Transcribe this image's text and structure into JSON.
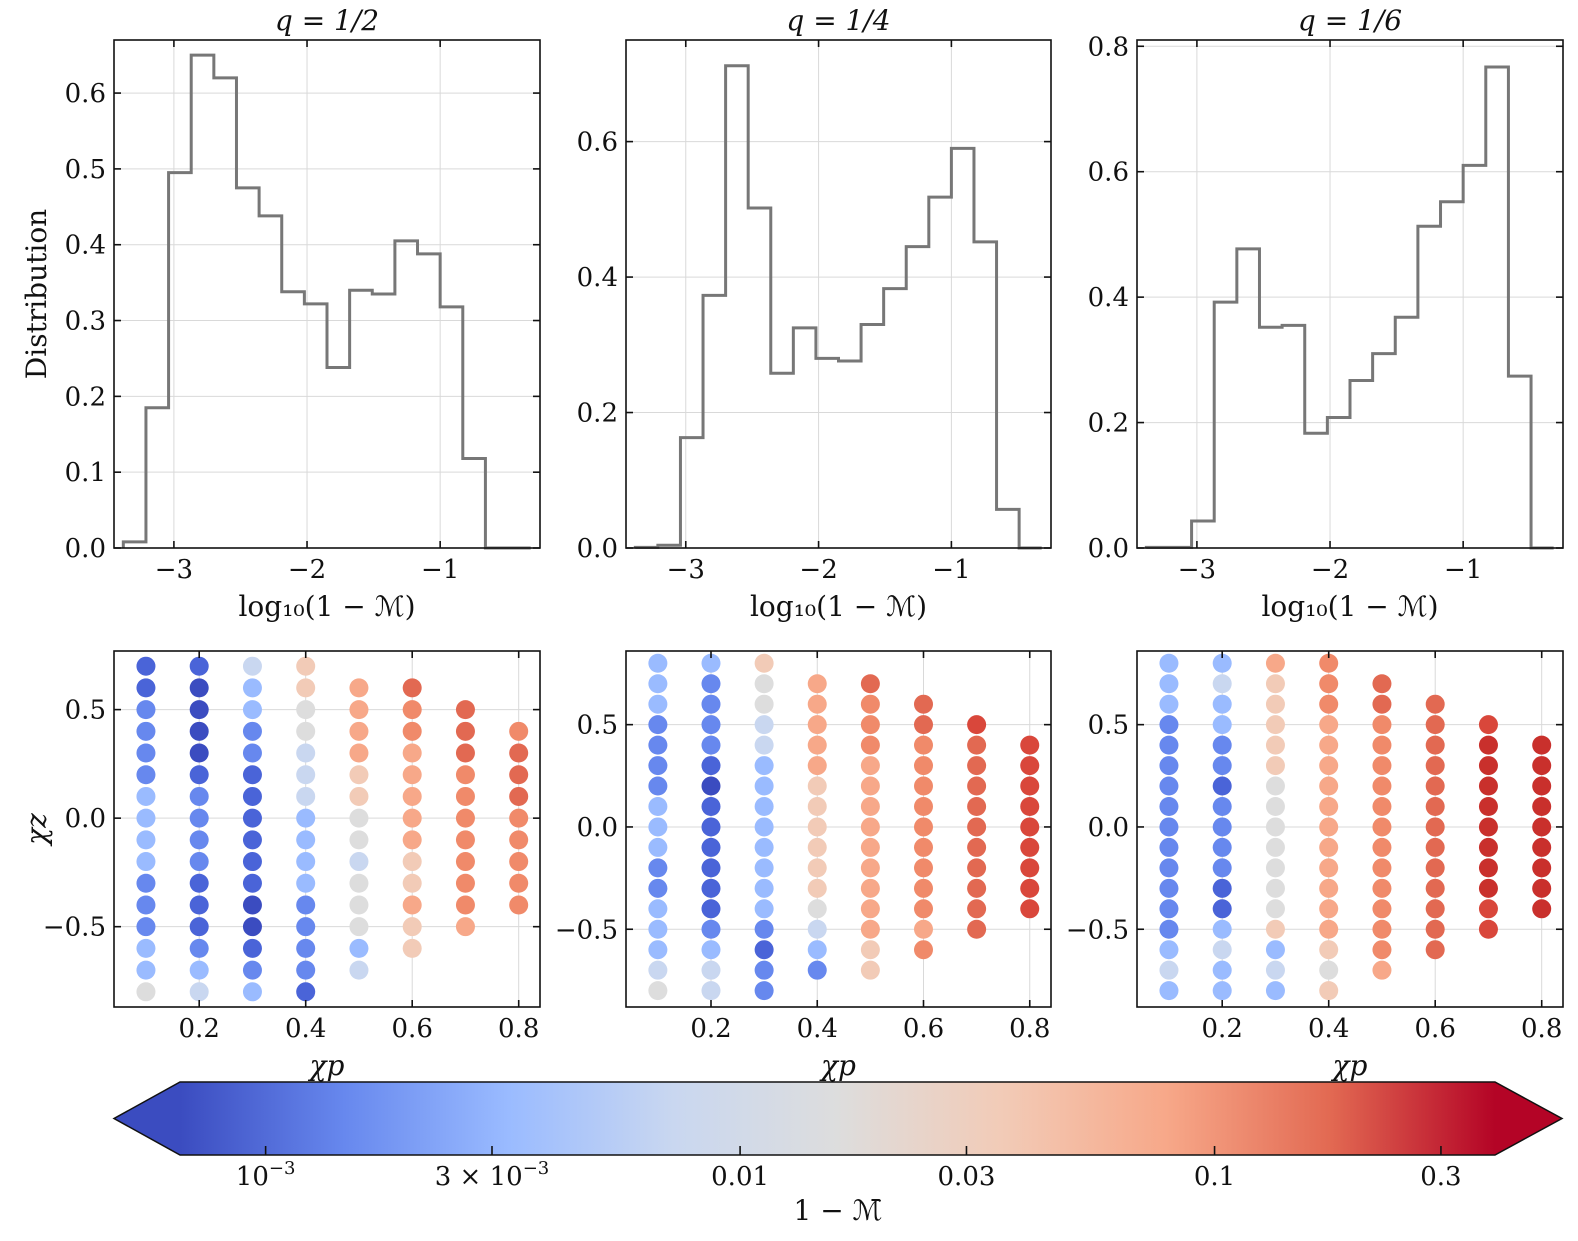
{
  "colors": {
    "histogram": "#777777",
    "grid": "#d9d9d9",
    "cmap": [
      "#3b4cc0",
      "#6788ee",
      "#9abbff",
      "#c9d7f0",
      "#dddddd",
      "#f2cbb7",
      "#f7a889",
      "#e26952",
      "#b40426"
    ]
  },
  "chart_data": [
    {
      "type": "histogram",
      "title": "q = 1/2",
      "xlabel": "log₁₀(1 − ℳ)",
      "ylabel": "Distribution",
      "xlim": [
        -3.45,
        -0.25
      ],
      "ylim": [
        0,
        0.67
      ],
      "xticks": [
        -3,
        -2,
        -1
      ],
      "xtick_labels": [
        "−3",
        "−2",
        "−1"
      ],
      "yticks": [
        0,
        0.1,
        0.2,
        0.3,
        0.4,
        0.5,
        0.6
      ],
      "ytick_labels": [
        "0.0",
        "0.1",
        "0.2",
        "0.3",
        "0.4",
        "0.5",
        "0.6"
      ],
      "edges": [
        -3.38,
        -3.21,
        -3.04,
        -2.87,
        -2.7,
        -2.53,
        -2.36,
        -2.19,
        -2.02,
        -1.85,
        -1.68,
        -1.51,
        -1.34,
        -1.17,
        -1.0,
        -0.83,
        -0.66,
        -0.49,
        -0.32
      ],
      "values": [
        0.008,
        0.185,
        0.495,
        0.65,
        0.62,
        0.475,
        0.438,
        0.338,
        0.322,
        0.238,
        0.34,
        0.335,
        0.405,
        0.388,
        0.318,
        0.118,
        0.0,
        0.0
      ]
    },
    {
      "type": "histogram",
      "title": "q = 1/4",
      "xlabel": "log₁₀(1 − ℳ)",
      "ylabel": "",
      "xlim": [
        -3.45,
        -0.25
      ],
      "ylim": [
        0,
        0.75
      ],
      "xticks": [
        -3,
        -2,
        -1
      ],
      "xtick_labels": [
        "−3",
        "−2",
        "−1"
      ],
      "yticks": [
        0,
        0.2,
        0.4,
        0.6
      ],
      "ytick_labels": [
        "0.0",
        "0.2",
        "0.4",
        "0.6"
      ],
      "edges": [
        -3.38,
        -3.21,
        -3.04,
        -2.87,
        -2.7,
        -2.53,
        -2.36,
        -2.19,
        -2.02,
        -1.85,
        -1.68,
        -1.51,
        -1.34,
        -1.17,
        -1.0,
        -0.83,
        -0.66,
        -0.49,
        -0.32
      ],
      "values": [
        0.001,
        0.004,
        0.163,
        0.373,
        0.712,
        0.502,
        0.258,
        0.325,
        0.28,
        0.276,
        0.33,
        0.383,
        0.445,
        0.518,
        0.59,
        0.452,
        0.057,
        0.0
      ]
    },
    {
      "type": "histogram",
      "title": "q = 1/6",
      "xlabel": "log₁₀(1 − ℳ)",
      "ylabel": "",
      "xlim": [
        -3.45,
        -0.25
      ],
      "ylim": [
        0,
        0.81
      ],
      "xticks": [
        -3,
        -2,
        -1
      ],
      "xtick_labels": [
        "−3",
        "−2",
        "−1"
      ],
      "yticks": [
        0,
        0.2,
        0.4,
        0.6,
        0.8
      ],
      "ytick_labels": [
        "0.0",
        "0.2",
        "0.4",
        "0.6",
        "0.8"
      ],
      "edges": [
        -3.38,
        -3.21,
        -3.04,
        -2.87,
        -2.7,
        -2.53,
        -2.36,
        -2.19,
        -2.02,
        -1.85,
        -1.68,
        -1.51,
        -1.34,
        -1.17,
        -1.0,
        -0.83,
        -0.66,
        -0.49,
        -0.32
      ],
      "values": [
        0.001,
        0.001,
        0.043,
        0.392,
        0.477,
        0.352,
        0.355,
        0.183,
        0.208,
        0.267,
        0.31,
        0.368,
        0.513,
        0.552,
        0.61,
        0.767,
        0.274,
        0.0
      ]
    },
    {
      "type": "scatter",
      "xlabel": "χp",
      "ylabel": "χz",
      "xlim": [
        0.04,
        0.84
      ],
      "ylim": [
        -0.87,
        0.77
      ],
      "xticks": [
        0.2,
        0.4,
        0.6,
        0.8
      ],
      "xtick_labels": [
        "0.2",
        "0.4",
        "0.6",
        "0.8"
      ],
      "yticks": [
        -0.5,
        0,
        0.5
      ],
      "ytick_labels": [
        "−0.5",
        "0.0",
        "0.5"
      ],
      "columns": [
        {
          "x": 0.1,
          "zmin": -0.8,
          "zmax": 0.7,
          "colors": [
            "#dddddd",
            "#9abbff",
            "#9abbff",
            "#6788ee",
            "#6788ee",
            "#6788ee",
            "#9abbff",
            "#9abbff",
            "#9abbff",
            "#9abbff",
            "#6788ee",
            "#6788ee",
            "#6788ee",
            "#6788ee",
            "#4a64d8",
            "#4a64d8"
          ]
        },
        {
          "x": 0.2,
          "zmin": -0.8,
          "zmax": 0.7,
          "colors": [
            "#c9d7f0",
            "#9abbff",
            "#6788ee",
            "#4a64d8",
            "#4a64d8",
            "#4a64d8",
            "#6788ee",
            "#6788ee",
            "#6788ee",
            "#6788ee",
            "#4a64d8",
            "#3b4cc0",
            "#3b4cc0",
            "#3b4cc0",
            "#3b4cc0",
            "#4a64d8"
          ]
        },
        {
          "x": 0.3,
          "zmin": -0.8,
          "zmax": 0.7,
          "colors": [
            "#9abbff",
            "#6788ee",
            "#4a64d8",
            "#3b4cc0",
            "#3b4cc0",
            "#4a64d8",
            "#4a64d8",
            "#4a64d8",
            "#4a64d8",
            "#4a64d8",
            "#4a64d8",
            "#6788ee",
            "#6788ee",
            "#9abbff",
            "#9abbff",
            "#c9d7f0"
          ]
        },
        {
          "x": 0.4,
          "zmin": -0.8,
          "zmax": 0.7,
          "colors": [
            "#4a64d8",
            "#6788ee",
            "#6788ee",
            "#6788ee",
            "#6788ee",
            "#9abbff",
            "#9abbff",
            "#9abbff",
            "#9abbff",
            "#c9d7f0",
            "#c9d7f0",
            "#c9d7f0",
            "#dddddd",
            "#dddddd",
            "#f2cbb7",
            "#f2cbb7"
          ]
        },
        {
          "x": 0.5,
          "zmin": -0.7,
          "zmax": 0.6,
          "colors": [
            "#c9d7f0",
            "#9abbff",
            "#dddddd",
            "#dddddd",
            "#dddddd",
            "#c9d7f0",
            "#dddddd",
            "#dddddd",
            "#f2cbb7",
            "#f2cbb7",
            "#f7a889",
            "#f7a889",
            "#f7a889",
            "#f7a889"
          ]
        },
        {
          "x": 0.6,
          "zmin": -0.6,
          "zmax": 0.6,
          "colors": [
            "#f2cbb7",
            "#f2cbb7",
            "#f7a889",
            "#f2cbb7",
            "#f2cbb7",
            "#f7a889",
            "#f7a889",
            "#f7a889",
            "#f7a889",
            "#f7a889",
            "#f08a6a",
            "#f08a6a",
            "#e26952"
          ]
        },
        {
          "x": 0.7,
          "zmin": -0.5,
          "zmax": 0.5,
          "colors": [
            "#f7a889",
            "#f08a6a",
            "#f08a6a",
            "#f08a6a",
            "#f08a6a",
            "#f08a6a",
            "#f08a6a",
            "#f08a6a",
            "#e26952",
            "#e26952",
            "#e26952"
          ]
        },
        {
          "x": 0.8,
          "zmin": -0.4,
          "zmax": 0.4,
          "colors": [
            "#f08a6a",
            "#f08a6a",
            "#f08a6a",
            "#f08a6a",
            "#f08a6a",
            "#e26952",
            "#e26952",
            "#e26952",
            "#f08a6a"
          ]
        }
      ]
    },
    {
      "type": "scatter",
      "xlabel": "χp",
      "ylabel": "",
      "xlim": [
        0.04,
        0.84
      ],
      "ylim": [
        -0.88,
        0.86
      ],
      "xticks": [
        0.2,
        0.4,
        0.6,
        0.8
      ],
      "xtick_labels": [
        "0.2",
        "0.4",
        "0.6",
        "0.8"
      ],
      "yticks": [
        -0.5,
        0,
        0.5
      ],
      "ytick_labels": [
        "−0.5",
        "0.0",
        "0.5"
      ],
      "columns": [
        {
          "x": 0.1,
          "zmin": -0.8,
          "zmax": 0.8,
          "colors": [
            "#dddddd",
            "#c9d7f0",
            "#9abbff",
            "#9abbff",
            "#9abbff",
            "#6788ee",
            "#6788ee",
            "#9abbff",
            "#9abbff",
            "#9abbff",
            "#6788ee",
            "#6788ee",
            "#6788ee",
            "#6788ee",
            "#9abbff",
            "#9abbff",
            "#9abbff"
          ]
        },
        {
          "x": 0.2,
          "zmin": -0.8,
          "zmax": 0.8,
          "colors": [
            "#c9d7f0",
            "#c9d7f0",
            "#9abbff",
            "#6788ee",
            "#4a64d8",
            "#4a64d8",
            "#4a64d8",
            "#4a64d8",
            "#4a64d8",
            "#4a64d8",
            "#3b4cc0",
            "#4a64d8",
            "#6788ee",
            "#6788ee",
            "#6788ee",
            "#6788ee",
            "#9abbff"
          ]
        },
        {
          "x": 0.3,
          "zmin": -0.8,
          "zmax": 0.8,
          "colors": [
            "#6788ee",
            "#6788ee",
            "#4a64d8",
            "#6788ee",
            "#9abbff",
            "#9abbff",
            "#9abbff",
            "#9abbff",
            "#9abbff",
            "#9abbff",
            "#9abbff",
            "#9abbff",
            "#c9d7f0",
            "#c9d7f0",
            "#dddddd",
            "#dddddd",
            "#f2cbb7"
          ]
        },
        {
          "x": 0.4,
          "zmin": -0.7,
          "zmax": 0.7,
          "colors": [
            "#6788ee",
            "#9abbff",
            "#c9d7f0",
            "#dddddd",
            "#f2cbb7",
            "#f2cbb7",
            "#f2cbb7",
            "#f2cbb7",
            "#f2cbb7",
            "#f2cbb7",
            "#f7a889",
            "#f7a889",
            "#f7a889",
            "#f7a889",
            "#f7a889"
          ]
        },
        {
          "x": 0.5,
          "zmin": -0.7,
          "zmax": 0.7,
          "colors": [
            "#f2cbb7",
            "#f2cbb7",
            "#f7a889",
            "#f7a889",
            "#f7a889",
            "#f7a889",
            "#f7a889",
            "#f7a889",
            "#f7a889",
            "#f7a889",
            "#f7a889",
            "#f08a6a",
            "#f08a6a",
            "#f08a6a",
            "#e26952"
          ]
        },
        {
          "x": 0.6,
          "zmin": -0.6,
          "zmax": 0.6,
          "colors": [
            "#f08a6a",
            "#f7a889",
            "#f08a6a",
            "#f08a6a",
            "#f08a6a",
            "#f08a6a",
            "#f08a6a",
            "#f08a6a",
            "#f08a6a",
            "#f08a6a",
            "#f08a6a",
            "#e26952",
            "#e26952"
          ]
        },
        {
          "x": 0.7,
          "zmin": -0.5,
          "zmax": 0.5,
          "colors": [
            "#e26952",
            "#e26952",
            "#e26952",
            "#e26952",
            "#e26952",
            "#e26952",
            "#e26952",
            "#e26952",
            "#e26952",
            "#e26952",
            "#d9473b"
          ]
        },
        {
          "x": 0.8,
          "zmin": -0.4,
          "zmax": 0.4,
          "colors": [
            "#d9473b",
            "#d9473b",
            "#d9473b",
            "#d9473b",
            "#d9473b",
            "#d9473b",
            "#d9473b",
            "#d9473b",
            "#d9473b"
          ]
        }
      ]
    },
    {
      "type": "scatter",
      "xlabel": "χp",
      "ylabel": "",
      "xlim": [
        0.04,
        0.84
      ],
      "ylim": [
        -0.88,
        0.86
      ],
      "xticks": [
        0.2,
        0.4,
        0.6,
        0.8
      ],
      "xtick_labels": [
        "0.2",
        "0.4",
        "0.6",
        "0.8"
      ],
      "yticks": [
        -0.5,
        0,
        0.5
      ],
      "ytick_labels": [
        "−0.5",
        "0.0",
        "0.5"
      ],
      "columns": [
        {
          "x": 0.1,
          "zmin": -0.8,
          "zmax": 0.8,
          "colors": [
            "#9abbff",
            "#c9d7f0",
            "#9abbff",
            "#6788ee",
            "#6788ee",
            "#6788ee",
            "#6788ee",
            "#6788ee",
            "#6788ee",
            "#6788ee",
            "#6788ee",
            "#6788ee",
            "#6788ee",
            "#6788ee",
            "#9abbff",
            "#9abbff",
            "#9abbff"
          ]
        },
        {
          "x": 0.2,
          "zmin": -0.8,
          "zmax": 0.8,
          "colors": [
            "#9abbff",
            "#9abbff",
            "#c9d7f0",
            "#9abbff",
            "#4a64d8",
            "#4a64d8",
            "#6788ee",
            "#6788ee",
            "#6788ee",
            "#6788ee",
            "#4a64d8",
            "#6788ee",
            "#6788ee",
            "#9abbff",
            "#9abbff",
            "#c9d7f0",
            "#9abbff"
          ]
        },
        {
          "x": 0.3,
          "zmin": -0.8,
          "zmax": 0.8,
          "colors": [
            "#9abbff",
            "#c9d7f0",
            "#9abbff",
            "#f2cbb7",
            "#dddddd",
            "#dddddd",
            "#dddddd",
            "#dddddd",
            "#dddddd",
            "#dddddd",
            "#dddddd",
            "#f2cbb7",
            "#f2cbb7",
            "#f2cbb7",
            "#f2cbb7",
            "#f2cbb7",
            "#f7a889"
          ]
        },
        {
          "x": 0.4,
          "zmin": -0.8,
          "zmax": 0.8,
          "colors": [
            "#f2cbb7",
            "#dddddd",
            "#f2cbb7",
            "#f7a889",
            "#f7a889",
            "#f7a889",
            "#f7a889",
            "#f7a889",
            "#f7a889",
            "#f7a889",
            "#f7a889",
            "#f7a889",
            "#f7a889",
            "#f7a889",
            "#f08a6a",
            "#f08a6a",
            "#f08a6a"
          ]
        },
        {
          "x": 0.5,
          "zmin": -0.7,
          "zmax": 0.7,
          "colors": [
            "#f7a889",
            "#f08a6a",
            "#f08a6a",
            "#f08a6a",
            "#f08a6a",
            "#f08a6a",
            "#f08a6a",
            "#f08a6a",
            "#f08a6a",
            "#f08a6a",
            "#f08a6a",
            "#f08a6a",
            "#f08a6a",
            "#e26952",
            "#e26952"
          ]
        },
        {
          "x": 0.6,
          "zmin": -0.6,
          "zmax": 0.6,
          "colors": [
            "#e26952",
            "#e26952",
            "#e26952",
            "#e26952",
            "#e26952",
            "#e26952",
            "#e26952",
            "#e26952",
            "#e26952",
            "#e26952",
            "#e26952",
            "#e26952",
            "#e26952"
          ]
        },
        {
          "x": 0.7,
          "zmin": -0.5,
          "zmax": 0.5,
          "colors": [
            "#d9473b",
            "#d9473b",
            "#c9302c",
            "#c9302c",
            "#c9302c",
            "#c9302c",
            "#c9302c",
            "#c9302c",
            "#c9302c",
            "#c9302c",
            "#d9473b"
          ]
        },
        {
          "x": 0.8,
          "zmin": -0.4,
          "zmax": 0.4,
          "colors": [
            "#c9302c",
            "#c9302c",
            "#c9302c",
            "#c9302c",
            "#c9302c",
            "#c9302c",
            "#c9302c",
            "#c9302c",
            "#c9302c"
          ]
        }
      ]
    }
  ],
  "colorbar": {
    "label": "1 − ℳ̄",
    "ticks": [
      {
        "value": 0.001,
        "base": "10",
        "exp": "−3",
        "prefix": ""
      },
      {
        "value": 0.003,
        "base": "10",
        "exp": "−3",
        "prefix": "3 × "
      },
      {
        "value": 0.01,
        "base": "0.01",
        "exp": "",
        "prefix": ""
      },
      {
        "value": 0.03,
        "base": "0.03",
        "exp": "",
        "prefix": ""
      },
      {
        "value": 0.1,
        "base": "0.1",
        "exp": "",
        "prefix": ""
      },
      {
        "value": 0.3,
        "base": "0.3",
        "exp": "",
        "prefix": ""
      }
    ],
    "range": [
      0.00066,
      0.39
    ],
    "extend": "both"
  }
}
